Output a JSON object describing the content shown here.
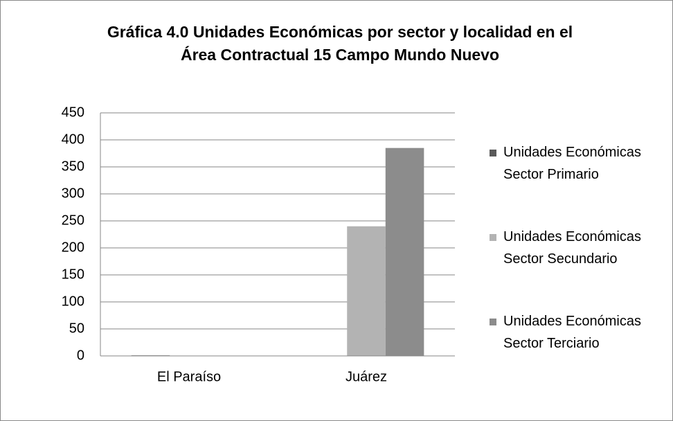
{
  "chart_data": {
    "type": "bar",
    "title": "Gráfica 4.0 Unidades Económicas por sector y localidad en el Área Contractual 15 Campo Mundo Nuevo",
    "categories": [
      "El Paraíso",
      "Juárez"
    ],
    "series": [
      {
        "name": "Unidades Económicas Sector Primario",
        "color": "#595959",
        "values": [
          1,
          0
        ]
      },
      {
        "name": "Unidades Económicas Sector Secundario",
        "color": "#b3b3b3",
        "values": [
          0,
          240
        ]
      },
      {
        "name": "Unidades Económicas Sector Terciario",
        "color": "#8c8c8c",
        "values": [
          0,
          385
        ]
      }
    ],
    "ylim": [
      0,
      450
    ],
    "yticks": [
      0,
      50,
      100,
      150,
      200,
      250,
      300,
      350,
      400,
      450
    ],
    "grid": true,
    "legend": "right"
  }
}
